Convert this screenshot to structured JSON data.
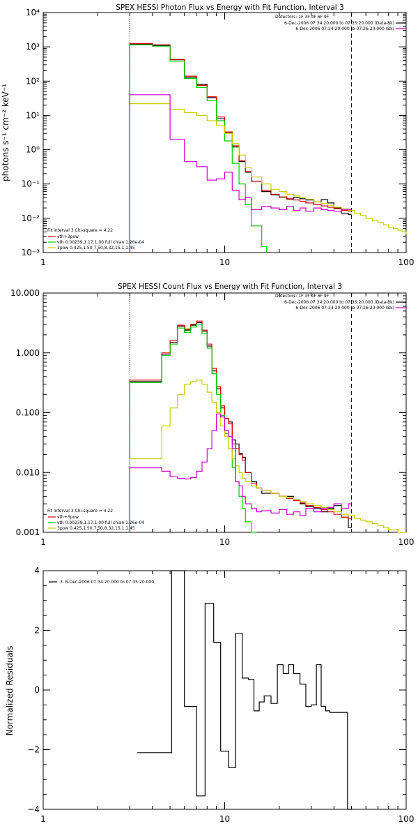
{
  "chart_data": [
    {
      "type": "line",
      "title": "SPEX HESSI Photon Flux vs Energy with Fit Function, Interval 3",
      "ylabel": "photons s⁻¹ cm⁻² keV⁻¹",
      "xlabel": "",
      "xscale": "log",
      "yscale": "log",
      "xlim": [
        1,
        100
      ],
      "ylim": [
        0.001,
        10000
      ],
      "xticklabels": [
        {
          "v": 1,
          "t": "1"
        },
        {
          "v": 10,
          "t": "10"
        },
        {
          "v": 100,
          "t": "100"
        }
      ],
      "yticklabels": [
        {
          "v": 0.001,
          "t": "10⁻³"
        },
        {
          "v": 0.01,
          "t": "10⁻²"
        },
        {
          "v": 0.1,
          "t": "10⁻¹"
        },
        {
          "v": 1,
          "t": "10⁰"
        },
        {
          "v": 10,
          "t": "10¹"
        },
        {
          "v": 100,
          "t": "10²"
        },
        {
          "v": 1000,
          "t": "10³"
        },
        {
          "v": 10000,
          "t": "10⁴"
        }
      ],
      "vlines": [
        {
          "x": 3,
          "style": "dotted"
        },
        {
          "x": 50,
          "style": "dashed"
        }
      ],
      "legend_top": {
        "title": "Detectors: 1F 3F 4F 6F 9F",
        "entries": [
          {
            "label": "6-Dec-2006 07:34:20.000 to 07:35:20.000 (Data-Bk)",
            "color": "#000000"
          },
          {
            "label": "6-Dec-2006 07:24:20.000 to 07:26:20.000 (Bk)",
            "color": "#cc00cc"
          }
        ]
      },
      "legend_bottom": {
        "title": "Fit Interval 3   Chi-square = 4.22",
        "entries": [
          {
            "label": "vth+3pow",
            "color": "#dd0000"
          },
          {
            "label": "vth 0.00239,1.17,1.00  full chian 1.26e-04",
            "color": "#00cc00"
          },
          {
            "label": "3pow 0.425,1.50,7.50,8.32,15.1,1.45",
            "color": "#cccc00"
          }
        ]
      },
      "series": [
        {
          "color": "#000000",
          "x": [
            3,
            4,
            5,
            6,
            7,
            8,
            9,
            10,
            11,
            12,
            13,
            14,
            16,
            18,
            20,
            22,
            24,
            26,
            28,
            31,
            34,
            37,
            40,
            44,
            48,
            50
          ],
          "y": [
            1200,
            1100,
            420,
            130,
            80,
            33,
            8,
            3.2,
            1.2,
            0.45,
            0.22,
            0.12,
            0.06,
            0.048,
            0.041,
            0.036,
            0.04,
            0.037,
            0.034,
            0.03,
            0.035,
            0.028,
            0.02,
            0.014,
            0.013,
            0.013
          ]
        },
        {
          "color": "#dd0000",
          "x": [
            3,
            4,
            5,
            6,
            7,
            8,
            9,
            10,
            11,
            12,
            13,
            14,
            16,
            18,
            20,
            22,
            24,
            26,
            28,
            31,
            34,
            37,
            40,
            44,
            48,
            50
          ],
          "y": [
            1250,
            1150,
            430,
            140,
            75,
            35,
            9,
            3.3,
            1.3,
            0.48,
            0.23,
            0.12,
            0.065,
            0.05,
            0.042,
            0.037,
            0.034,
            0.031,
            0.028,
            0.025,
            0.023,
            0.021,
            0.019,
            0.017,
            0.016,
            0.016
          ]
        },
        {
          "color": "#00cc00",
          "x": [
            3,
            4,
            5,
            6,
            7,
            8,
            9,
            10,
            11,
            12,
            13,
            14,
            16,
            17
          ],
          "y": [
            1150,
            1050,
            380,
            120,
            65,
            27,
            7,
            1.8,
            0.4,
            0.1,
            0.025,
            0.006,
            0.0015,
            0.001
          ]
        },
        {
          "color": "#cccc00",
          "x": [
            3,
            4,
            5,
            6,
            7,
            8,
            9,
            10,
            11,
            12,
            13,
            14,
            16,
            18,
            20,
            22,
            24,
            26,
            28,
            31,
            34,
            37,
            40,
            44,
            48,
            52,
            56,
            60,
            65,
            70,
            75,
            80,
            85,
            90,
            95,
            100
          ],
          "y": [
            22,
            22,
            15,
            12,
            10,
            7,
            5,
            3,
            1.5,
            0.7,
            0.3,
            0.16,
            0.1,
            0.07,
            0.06,
            0.05,
            0.045,
            0.04,
            0.036,
            0.03,
            0.027,
            0.024,
            0.021,
            0.019,
            0.017,
            0.014,
            0.012,
            0.01,
            0.0085,
            0.0075,
            0.0065,
            0.0055,
            0.005,
            0.0045,
            0.004,
            0.0035
          ]
        },
        {
          "color": "#cc00cc",
          "x": [
            3,
            4,
            5,
            6,
            7,
            8,
            9,
            10,
            11,
            12,
            13,
            14,
            16,
            18,
            20,
            22,
            24,
            26,
            28,
            31,
            34,
            37,
            40,
            44,
            48,
            50
          ],
          "y": [
            40,
            40,
            2,
            0.45,
            0.32,
            0.13,
            0.14,
            0.22,
            0.065,
            0.035,
            0.04,
            0.018,
            0.022,
            0.02,
            0.018,
            0.022,
            0.017,
            0.02,
            0.016,
            0.02,
            0.018,
            0.017,
            0.016,
            0.018,
            0.018,
            0.018
          ]
        }
      ]
    },
    {
      "type": "line",
      "title": "SPEX HESSI Count Flux vs Energy with Fit Function, Interval 3",
      "ylabel": "",
      "xlabel": "",
      "xscale": "log",
      "yscale": "log",
      "xlim": [
        1,
        100
      ],
      "ylim": [
        0.001,
        10
      ],
      "xticklabels": [
        {
          "v": 1,
          "t": "1"
        },
        {
          "v": 10,
          "t": "10"
        },
        {
          "v": 100,
          "t": "100"
        }
      ],
      "yticklabels": [
        {
          "v": 0.001,
          "t": "0.001"
        },
        {
          "v": 0.01,
          "t": "0.010"
        },
        {
          "v": 0.1,
          "t": "0.100"
        },
        {
          "v": 1,
          "t": "1.000"
        },
        {
          "v": 10,
          "t": "10.000"
        }
      ],
      "vlines": [
        {
          "x": 3,
          "style": "dotted"
        },
        {
          "x": 50,
          "style": "dashed"
        }
      ],
      "legend_top": {
        "title": "Detectors: 1F 3F 4F 6F 9F",
        "entries": [
          {
            "label": "6-Dec-2006 07:34:20.000 to 07:35:20.000 (Data-Bk)",
            "color": "#000000"
          },
          {
            "label": "6-Dec-2006 07:24:20.000 to 07:26:20.000 (Bk)",
            "color": "#cc00cc"
          }
        ]
      },
      "legend_bottom": {
        "title": "Fit Interval 3   Chi-square = 4.22",
        "entries": [
          {
            "label": "vth+3pow",
            "color": "#dd0000"
          },
          {
            "label": "vth 0.00239,1.17,1.00  full chian 1.26e-04",
            "color": "#00cc00"
          },
          {
            "label": "3pow 0.425,1.50,7.50,8.32,15.1,1.45",
            "color": "#cccc00"
          }
        ]
      },
      "series": [
        {
          "color": "#000000",
          "x": [
            3,
            4,
            4.5,
            5,
            5.5,
            6,
            6.5,
            7,
            7.5,
            8,
            8.5,
            9,
            9.5,
            10,
            10.5,
            11,
            11.5,
            12,
            12.5,
            13,
            14,
            15,
            16,
            18,
            20,
            22,
            24,
            26,
            28,
            31,
            34,
            37,
            40,
            44,
            48,
            50
          ],
          "y": [
            0.33,
            0.33,
            0.95,
            1.5,
            2.8,
            2.4,
            2.9,
            3.2,
            2.3,
            1.3,
            0.5,
            0.25,
            0.12,
            0.08,
            0.07,
            0.035,
            0.03,
            0.021,
            0.018,
            0.01,
            0.007,
            0.0055,
            0.0045,
            0.0045,
            0.004,
            0.004,
            0.0035,
            0.003,
            0.0027,
            0.0025,
            0.0022,
            0.0025,
            0.0028,
            0.0018,
            0.0012,
            0.0012
          ]
        },
        {
          "color": "#dd0000",
          "x": [
            3,
            4,
            4.5,
            5,
            5.5,
            6,
            6.5,
            7,
            7.5,
            8,
            8.5,
            9,
            9.5,
            10,
            10.5,
            11,
            11.5,
            12,
            12.5,
            13,
            14,
            15,
            16,
            18,
            20,
            22,
            24,
            26,
            28,
            31,
            34,
            37,
            40,
            44,
            48,
            50
          ],
          "y": [
            0.35,
            0.35,
            1.0,
            1.6,
            2.9,
            2.5,
            3.0,
            3.4,
            2.4,
            1.4,
            0.55,
            0.27,
            0.13,
            0.08,
            0.065,
            0.03,
            0.025,
            0.02,
            0.016,
            0.01,
            0.0065,
            0.0055,
            0.005,
            0.0045,
            0.004,
            0.0037,
            0.0034,
            0.0031,
            0.0028,
            0.0026,
            0.0024,
            0.0022,
            0.002,
            0.0018,
            0.0017,
            0.0017
          ]
        },
        {
          "color": "#00cc00",
          "x": [
            3,
            4,
            4.5,
            5,
            5.5,
            6,
            6.5,
            7,
            7.5,
            8,
            8.5,
            9,
            9.5,
            10,
            10.5,
            11,
            11.5,
            12,
            12.5,
            13,
            14,
            15
          ],
          "y": [
            0.32,
            0.32,
            0.9,
            1.4,
            2.6,
            2.2,
            2.7,
            3.0,
            2.1,
            1.2,
            0.45,
            0.2,
            0.09,
            0.045,
            0.025,
            0.012,
            0.007,
            0.004,
            0.0025,
            0.0015,
            0.001,
            0.001
          ]
        },
        {
          "color": "#cccc00",
          "x": [
            3,
            4,
            4.5,
            5,
            5.5,
            6,
            6.5,
            7,
            7.5,
            8,
            8.5,
            9,
            9.5,
            10,
            10.5,
            11,
            11.5,
            12,
            12.5,
            13,
            14,
            15,
            16,
            18,
            20,
            22,
            24,
            26,
            28,
            31,
            34,
            37,
            40,
            44,
            48,
            52,
            56,
            60,
            65,
            70,
            75,
            80,
            90,
            100
          ],
          "y": [
            0.017,
            0.017,
            0.06,
            0.12,
            0.2,
            0.3,
            0.33,
            0.35,
            0.3,
            0.22,
            0.15,
            0.1,
            0.06,
            0.04,
            0.025,
            0.017,
            0.013,
            0.01,
            0.008,
            0.007,
            0.006,
            0.0055,
            0.005,
            0.0045,
            0.004,
            0.0038,
            0.0035,
            0.0033,
            0.003,
            0.0028,
            0.0026,
            0.0024,
            0.0022,
            0.002,
            0.0019,
            0.0017,
            0.0016,
            0.0015,
            0.0014,
            0.0013,
            0.0012,
            0.0011,
            0.001,
            0.001
          ]
        },
        {
          "color": "#cc00cc",
          "x": [
            3,
            4,
            4.5,
            5,
            5.5,
            6,
            6.5,
            7,
            7.5,
            8,
            8.5,
            9,
            9.5,
            10,
            10.5,
            11,
            11.5,
            12,
            12.5,
            13,
            14,
            15,
            16,
            18,
            20,
            22,
            24,
            26,
            28,
            31,
            34,
            37,
            40,
            44,
            48,
            50
          ],
          "y": [
            0.012,
            0.012,
            0.0105,
            0.0085,
            0.008,
            0.0078,
            0.0082,
            0.0105,
            0.015,
            0.025,
            0.05,
            0.095,
            0.085,
            0.05,
            0.04,
            0.025,
            0.007,
            0.006,
            0.004,
            0.003,
            0.0025,
            0.0022,
            0.0023,
            0.0021,
            0.0024,
            0.002,
            0.0022,
            0.0019,
            0.0025,
            0.0022,
            0.0025,
            0.0026,
            0.003,
            0.0025,
            0.003,
            0.003
          ]
        }
      ]
    },
    {
      "type": "line",
      "title": "",
      "ylabel": "Normalized Residuals",
      "xlabel": "",
      "xscale": "log",
      "yscale": "linear",
      "xlim": [
        1,
        100
      ],
      "ylim": [
        -4,
        4
      ],
      "xticklabels": [
        {
          "v": 1,
          "t": "1"
        },
        {
          "v": 10,
          "t": "10"
        },
        {
          "v": 100,
          "t": "100"
        }
      ],
      "yticklabels": [
        {
          "v": -4,
          "t": "−4"
        },
        {
          "v": -2,
          "t": "−2"
        },
        {
          "v": 0,
          "t": "0"
        },
        {
          "v": 2,
          "t": "2"
        },
        {
          "v": 4,
          "t": "4"
        }
      ],
      "legend_top_left": {
        "entries": [
          {
            "label": "3.  6-Dec-2006 07:34:20.000 to 07:35:20.000",
            "color": "#000000"
          }
        ]
      },
      "series": [
        {
          "color": "#000000",
          "x": [
            3.3,
            4.4,
            5.1,
            6.0,
            7.0,
            7.8,
            8.7,
            9.5,
            10.5,
            11.5,
            12.5,
            13.5,
            14.5,
            15.5,
            16.5,
            18.0,
            19.5,
            21.0,
            22.5,
            24.0,
            26.0,
            28.0,
            30.0,
            32.0,
            34.0,
            36.0,
            38.0,
            41.0,
            44.0,
            47.5,
            50.5
          ],
          "y": [
            -2.1,
            -2.1,
            4.0,
            -0.55,
            -3.55,
            2.9,
            1.6,
            -2.05,
            -2.6,
            1.9,
            0.4,
            0.35,
            -0.7,
            -0.4,
            -0.2,
            -0.45,
            0.85,
            0.55,
            0.85,
            0.55,
            0.2,
            -0.55,
            -0.5,
            0.85,
            -0.55,
            -0.7,
            -0.75,
            -0.75,
            -0.75,
            -4.0,
            -4.0
          ]
        }
      ]
    }
  ]
}
